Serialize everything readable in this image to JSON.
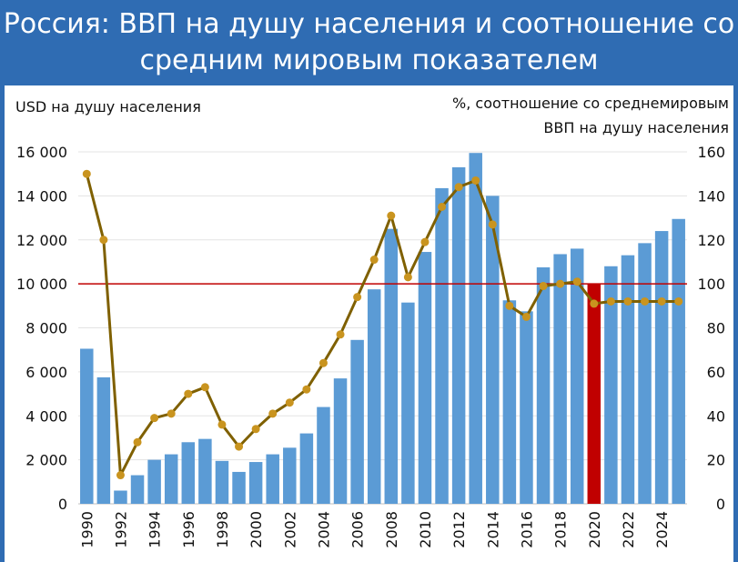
{
  "title": {
    "line1": "Россия: ВВП на душу населения и соотношение со",
    "line2": "средним мировым показателем"
  },
  "chart_data": {
    "type": "bar",
    "title": "Россия: ВВП на душу населения и соотношение со средним мировым показателем",
    "y_left_label": "USD на душу населения",
    "y_right_label_line1": "%, соотношение со среднемировым",
    "y_right_label_line2": "ВВП на душу населения",
    "y_left_ticks": [
      "0",
      "2 000",
      "4 000",
      "6 000",
      "8 000",
      "10 000",
      "12 000",
      "14 000",
      "16 000"
    ],
    "y_right_ticks": [
      "0",
      "20",
      "40",
      "60",
      "80",
      "100",
      "120",
      "140",
      "160"
    ],
    "ylim_left": [
      0,
      16000
    ],
    "ylim_right": [
      0,
      160
    ],
    "grid": true,
    "x_tick_labels": [
      "1990",
      "1992",
      "1994",
      "1996",
      "1998",
      "2000",
      "2002",
      "2004",
      "2006",
      "2008",
      "2010",
      "2012",
      "2014",
      "2016",
      "2018",
      "2020",
      "2022",
      "2024"
    ],
    "years": [
      1990,
      1991,
      1992,
      1993,
      1994,
      1995,
      1996,
      1997,
      1998,
      1999,
      2000,
      2001,
      2002,
      2003,
      2004,
      2005,
      2006,
      2007,
      2008,
      2009,
      2010,
      2011,
      2012,
      2013,
      2014,
      2015,
      2016,
      2017,
      2018,
      2019,
      2020,
      2021,
      2022,
      2023,
      2024,
      2025
    ],
    "gdp_per_capita_usd": [
      7050,
      5750,
      600,
      1300,
      2000,
      2250,
      2800,
      2950,
      1950,
      1450,
      1900,
      2250,
      2550,
      3200,
      4400,
      5700,
      7450,
      9750,
      12500,
      9150,
      11450,
      14350,
      15300,
      15950,
      14000,
      9250,
      8750,
      10750,
      11350,
      11600,
      10000,
      10800,
      11300,
      11850,
      12400,
      12950
    ],
    "highlight_year": 2020,
    "ratio_to_world_pct": [
      150,
      120,
      13,
      28,
      39,
      41,
      50,
      53,
      36,
      26,
      34,
      41,
      46,
      52,
      64,
      77,
      94,
      111,
      131,
      103,
      119,
      135,
      144,
      147,
      127,
      90,
      85,
      99,
      100,
      101,
      91,
      92,
      92,
      92,
      92,
      92
    ],
    "reference_line_pct": 100,
    "colors": {
      "bars": "#5b9bd5",
      "highlight_bar": "#c00000",
      "ratio_line": "#7f6000",
      "ratio_markers": "#c9941f",
      "reference_line": "#c00000",
      "grid": "#e3e3e3"
    }
  }
}
